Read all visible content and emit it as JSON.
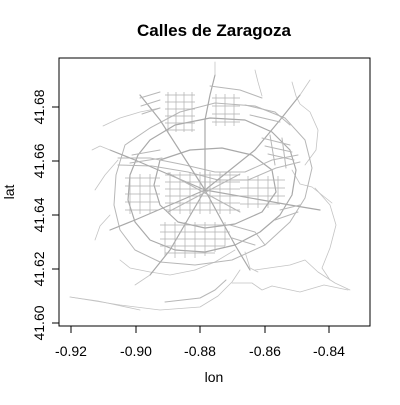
{
  "title": "Calles de Zaragoza",
  "x_axis": {
    "label": "lon",
    "range": [
      -0.925,
      -0.824
    ],
    "ticks": [
      "-0.92",
      "-0.90",
      "-0.88",
      "-0.86",
      "-0.84"
    ]
  },
  "y_axis": {
    "label": "lat",
    "range": [
      41.598,
      41.696
    ],
    "ticks": [
      "41.60",
      "41.62",
      "41.64",
      "41.66",
      "41.68"
    ]
  },
  "colors": {
    "streets": "#b7b7b7",
    "axes": "#000000",
    "background": "#ffffff"
  }
}
